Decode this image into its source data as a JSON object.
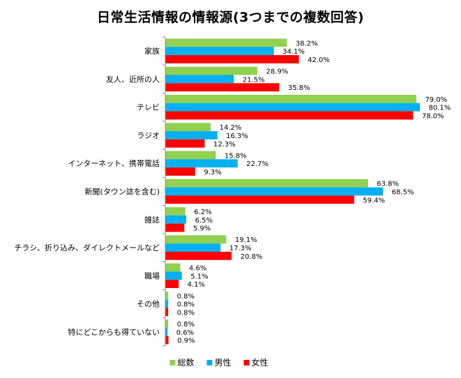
{
  "chart_data": {
    "type": "bar",
    "orientation": "horizontal",
    "title": "日常生活情報の情報源(3つまでの複数回答)",
    "xlim": [
      0,
      80
    ],
    "grid": false,
    "legend_position": "bottom",
    "value_suffix": "%",
    "categories": [
      "家族",
      "友人、近所の人",
      "テレビ",
      "ラジオ",
      "インターネット、携帯電話",
      "新聞(タウン誌を含む)",
      "雑誌",
      "チラシ、折り込み、ダイレクトメールなど",
      "職場",
      "その他",
      "特にどこからも得ていない"
    ],
    "series": [
      {
        "name": "総数",
        "color": "#92D050",
        "values": [
          38.2,
          28.9,
          79.0,
          14.2,
          15.8,
          63.8,
          6.2,
          19.1,
          4.6,
          0.8,
          0.8
        ],
        "labels": [
          "38.2%",
          "28.9%",
          "79.0%",
          "14.2%",
          "15.8%",
          "63.8%",
          "6.2%",
          "19.1%",
          "4.6%",
          "0.8%",
          "0.8%"
        ]
      },
      {
        "name": "男性",
        "color": "#00B0F0",
        "values": [
          34.1,
          21.5,
          80.1,
          16.3,
          22.7,
          68.5,
          6.5,
          17.3,
          5.1,
          0.8,
          0.6
        ],
        "labels": [
          "34.1%",
          "21.5%",
          "80.1%",
          "16.3%",
          "22.7%",
          "68.5%",
          "6.5%",
          "17.3%",
          "5.1%",
          "0.8%",
          "0.6%"
        ]
      },
      {
        "name": "女性",
        "color": "#FF0000",
        "values": [
          42.0,
          35.8,
          78.0,
          12.3,
          9.3,
          59.4,
          5.9,
          20.8,
          4.1,
          0.8,
          0.9
        ],
        "labels": [
          "42.0%",
          "35.8%",
          "78.0%",
          "12.3%",
          "9.3%",
          "59.4%",
          "5.9%",
          "20.8%",
          "4.1%",
          "0.8%",
          "0.9%"
        ]
      }
    ]
  }
}
